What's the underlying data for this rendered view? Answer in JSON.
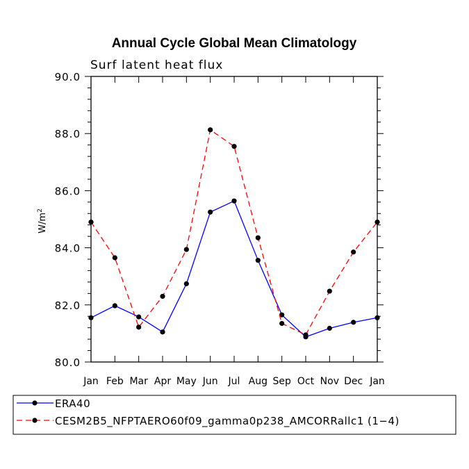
{
  "chart_data": {
    "type": "line",
    "title": "Annual Cycle Global Mean Climatology",
    "subtitle": "Surf latent heat flux",
    "ylabel": "W/m",
    "ylabel_superscript": "2",
    "xlabel": "",
    "categories": [
      "Jan",
      "Feb",
      "Mar",
      "Apr",
      "May",
      "Jun",
      "Jul",
      "Aug",
      "Sep",
      "Oct",
      "Nov",
      "Dec",
      "Jan"
    ],
    "ylim": [
      80.0,
      90.0
    ],
    "yticks": [
      80.0,
      82.0,
      84.0,
      86.0,
      88.0,
      90.0
    ],
    "ytick_labels": [
      "80.0",
      "82.0",
      "84.0",
      "86.0",
      "88.0",
      "90.0"
    ],
    "grid": false,
    "series": [
      {
        "name": "ERA40",
        "color": "#0000ff",
        "dash": "solid",
        "values": [
          81.55,
          81.97,
          81.58,
          81.05,
          82.74,
          85.25,
          85.64,
          83.56,
          81.65,
          80.88,
          81.18,
          81.39,
          81.55
        ]
      },
      {
        "name": "CESM2B5_NFPTAERO60f09_gamma0p238_AMCORRallc1 (1−4)",
        "color": "#ff0000",
        "dash": "dashed",
        "values": [
          84.9,
          83.65,
          81.22,
          82.3,
          83.94,
          88.13,
          87.55,
          84.35,
          81.35,
          80.95,
          82.48,
          83.85,
          84.9
        ]
      }
    ]
  }
}
